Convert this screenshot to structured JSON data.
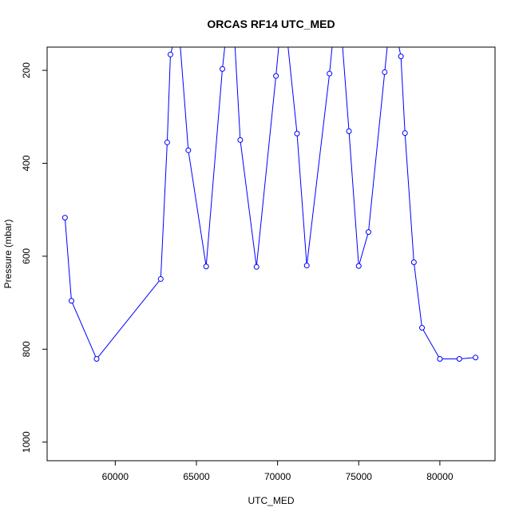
{
  "chart_data": {
    "type": "line",
    "title": "ORCAS RF14 UTC_MED",
    "xlabel": "UTC_MED",
    "ylabel": "Pressure (mbar)",
    "xlim": [
      55800,
      83400
    ],
    "ylim": [
      1040,
      150
    ],
    "y_reversed": true,
    "grid": false,
    "legend": "none",
    "xticks": [
      60000,
      65000,
      70000,
      75000,
      80000
    ],
    "yticks": [
      200,
      400,
      600,
      800,
      1000
    ],
    "colors": {
      "line": "#0000ff",
      "frame": "#000000",
      "background": "#ffffff"
    },
    "marker": "open-circle",
    "series": [
      {
        "x": [
          56900,
          57300,
          58850,
          62800,
          63200,
          63400,
          63900,
          64500,
          65600,
          66600,
          66900,
          67300,
          67700,
          68700,
          69900,
          70200,
          70500,
          71200,
          71800,
          73200,
          73500,
          73900,
          74400,
          75000,
          75600,
          76600,
          76900,
          77200,
          77600,
          77850,
          78400,
          78900,
          80000,
          81200,
          82200
        ],
        "y": [
          517,
          696,
          821,
          649,
          355,
          166,
          100,
          372,
          622,
          197,
          100,
          100,
          350,
          623,
          212,
          100,
          100,
          336,
          620,
          207,
          100,
          100,
          331,
          621,
          548,
          204,
          100,
          100,
          170,
          335,
          613,
          754,
          821,
          821,
          818
        ]
      }
    ]
  }
}
